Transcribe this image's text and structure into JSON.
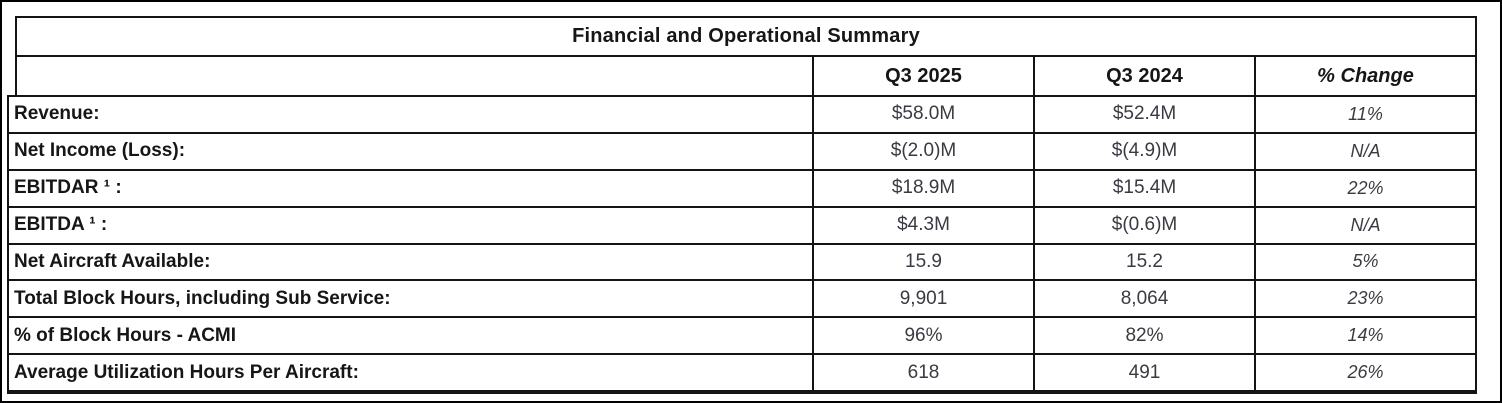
{
  "table": {
    "title": "Financial and Operational Summary",
    "columns": {
      "metric": "",
      "period1": "Q3 2025",
      "period2": "Q3 2024",
      "change": "% Change"
    },
    "rows": [
      {
        "label": "Revenue:",
        "period1": "$58.0M",
        "period2": "$52.4M",
        "change": "11%"
      },
      {
        "label": "Net Income (Loss):",
        "period1": "$(2.0)M",
        "period2": "$(4.9)M",
        "change": "N/A"
      },
      {
        "label": "EBITDAR ¹ :",
        "period1": "$18.9M",
        "period2": "$15.4M",
        "change": "22%"
      },
      {
        "label": "EBITDA ¹ :",
        "period1": "$4.3M",
        "period2": "$(0.6)M",
        "change": "N/A"
      },
      {
        "label": "Net Aircraft Available:",
        "period1": "15.9",
        "period2": "15.2",
        "change": "5%"
      },
      {
        "label": "Total Block Hours, including Sub Service:",
        "period1": "9,901",
        "period2": "8,064",
        "change": "23%"
      },
      {
        "label": "% of Block Hours - ACMI",
        "period1": "96%",
        "period2": "82%",
        "change": "14%"
      },
      {
        "label": "Average Utilization Hours Per Aircraft:",
        "period1": "618",
        "period2": "491",
        "change": "26%"
      }
    ]
  },
  "colors": {
    "border": "#141414",
    "label_text": "#161616",
    "value_text": "#3a3a42",
    "background": "#ffffff"
  }
}
